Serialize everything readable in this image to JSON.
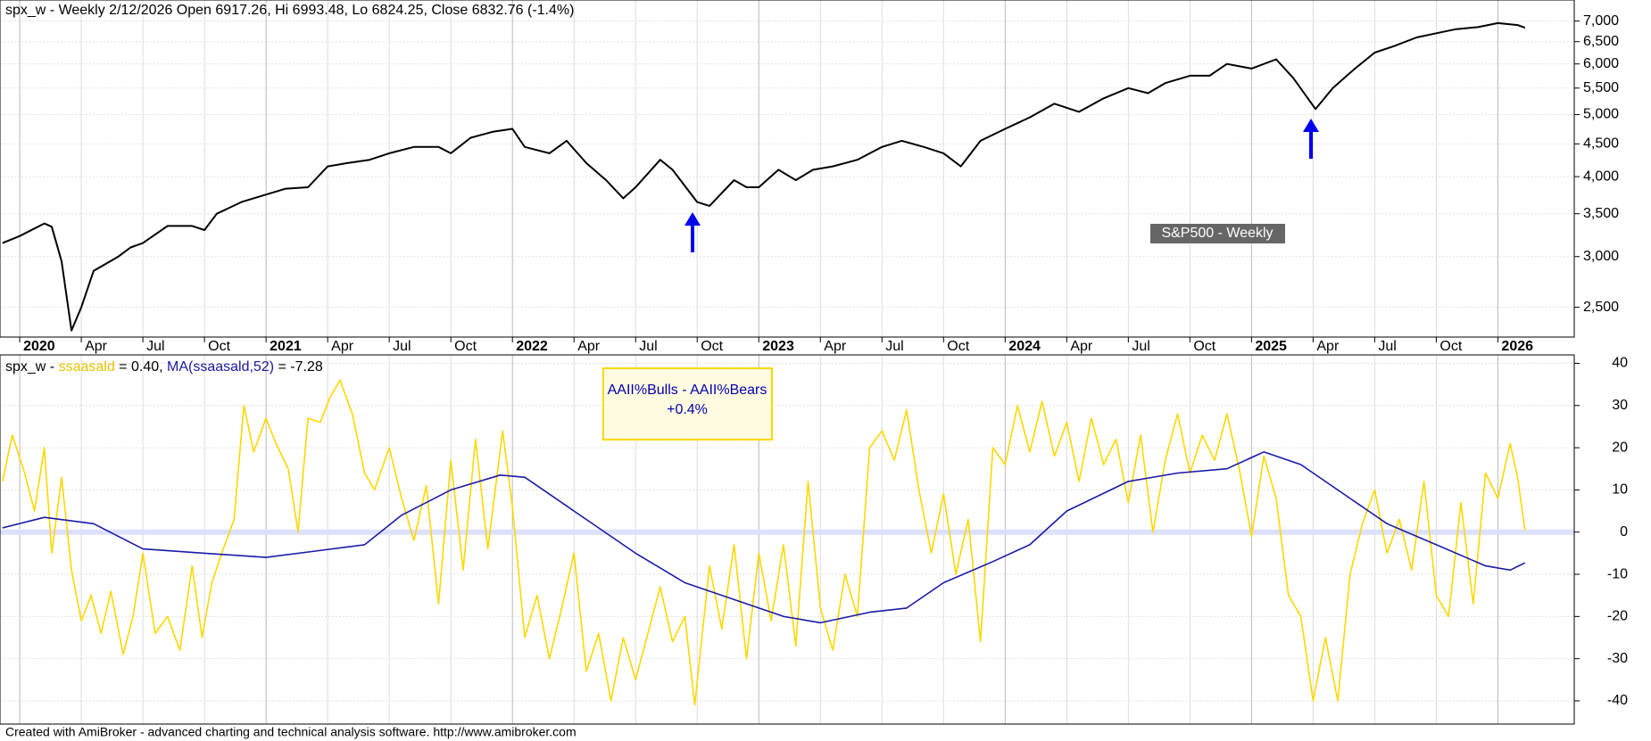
{
  "chart_data": [
    {
      "type": "line",
      "title": "spx_w - Weekly 2/12/2026 Open 6917.26, Hi 6993.48, Lo 6824.25, Close 6832.76 (-1.4%)",
      "ylog": true,
      "color": "#000000",
      "grid": true,
      "annotations": [
        "S&P500 - Weekly"
      ],
      "xlim": [
        2019.92,
        2026.31
      ],
      "xticks": [
        {
          "value": 2020,
          "label": "2020"
        },
        {
          "value": 2020.25,
          "label": "Apr"
        },
        {
          "value": 2020.5,
          "label": "Jul"
        },
        {
          "value": 2020.75,
          "label": "Oct"
        },
        {
          "value": 2021,
          "label": "2021"
        },
        {
          "value": 2021.25,
          "label": "Apr"
        },
        {
          "value": 2021.5,
          "label": "Jul"
        },
        {
          "value": 2021.75,
          "label": "Oct"
        },
        {
          "value": 2022,
          "label": "2022"
        },
        {
          "value": 2022.25,
          "label": "Apr"
        },
        {
          "value": 2022.5,
          "label": "Jul"
        },
        {
          "value": 2022.75,
          "label": "Oct"
        },
        {
          "value": 2023,
          "label": "2023"
        },
        {
          "value": 2023.25,
          "label": "Apr"
        },
        {
          "value": 2023.5,
          "label": "Jul"
        },
        {
          "value": 2023.75,
          "label": "Oct"
        },
        {
          "value": 2024,
          "label": "2024"
        },
        {
          "value": 2024.25,
          "label": "Apr"
        },
        {
          "value": 2024.5,
          "label": "Jul"
        },
        {
          "value": 2024.75,
          "label": "Oct"
        },
        {
          "value": 2025,
          "label": "2025"
        },
        {
          "value": 2025.25,
          "label": "Apr"
        },
        {
          "value": 2025.5,
          "label": "Jul"
        },
        {
          "value": 2025.75,
          "label": "Oct"
        },
        {
          "value": 2026,
          "label": "2026"
        }
      ],
      "ylim": [
        2246,
        7551
      ],
      "yticks": [
        {
          "value": 2500,
          "label": "2,500"
        },
        {
          "value": 3000,
          "label": "3,000"
        },
        {
          "value": 3500,
          "label": "3,500"
        },
        {
          "value": 4000,
          "label": "4,000"
        },
        {
          "value": 4500,
          "label": "4,500"
        },
        {
          "value": 5000,
          "label": "5,000"
        },
        {
          "value": 5500,
          "label": "5,500"
        },
        {
          "value": 6000,
          "label": "6,000"
        },
        {
          "value": 6500,
          "label": "6,500"
        },
        {
          "value": 7000,
          "label": "7,000"
        }
      ],
      "x": [
        2019.93,
        2020.0,
        2020.1,
        2020.13,
        2020.17,
        2020.21,
        2020.25,
        2020.3,
        2020.4,
        2020.45,
        2020.5,
        2020.6,
        2020.7,
        2020.75,
        2020.8,
        2020.9,
        2021.0,
        2021.08,
        2021.17,
        2021.25,
        2021.33,
        2021.42,
        2021.5,
        2021.6,
        2021.7,
        2021.75,
        2021.83,
        2021.92,
        2022.0,
        2022.05,
        2022.15,
        2022.22,
        2022.3,
        2022.38,
        2022.45,
        2022.5,
        2022.6,
        2022.65,
        2022.75,
        2022.8,
        2022.9,
        2022.95,
        2023.0,
        2023.08,
        2023.15,
        2023.22,
        2023.3,
        2023.4,
        2023.5,
        2023.58,
        2023.67,
        2023.75,
        2023.82,
        2023.9,
        2024.0,
        2024.1,
        2024.2,
        2024.3,
        2024.4,
        2024.5,
        2024.58,
        2024.65,
        2024.75,
        2024.83,
        2024.9,
        2025.0,
        2025.1,
        2025.17,
        2025.26,
        2025.33,
        2025.42,
        2025.5,
        2025.58,
        2025.67,
        2025.75,
        2025.83,
        2025.92,
        2026.0,
        2026.08,
        2026.11
      ],
      "values": [
        3150,
        3230,
        3380,
        3340,
        2950,
        2300,
        2500,
        2850,
        3000,
        3100,
        3150,
        3350,
        3350,
        3300,
        3500,
        3650,
        3750,
        3830,
        3850,
        4150,
        4200,
        4250,
        4350,
        4450,
        4450,
        4350,
        4600,
        4700,
        4750,
        4450,
        4350,
        4550,
        4200,
        3950,
        3700,
        3850,
        4250,
        4100,
        3650,
        3600,
        3950,
        3850,
        3850,
        4100,
        3950,
        4100,
        4150,
        4250,
        4450,
        4550,
        4450,
        4350,
        4150,
        4550,
        4750,
        4950,
        5200,
        5050,
        5300,
        5500,
        5400,
        5600,
        5750,
        5750,
        6000,
        5900,
        6100,
        5700,
        5100,
        5500,
        5900,
        6250,
        6400,
        6600,
        6700,
        6800,
        6850,
        6950,
        6900,
        6833
      ]
    },
    {
      "type": "line",
      "title_parts": [
        "spx_w - ",
        " = 0.40, ",
        " = -7.28"
      ],
      "grid": true,
      "annotations": [
        "AAII%Bulls - AAII%Bears",
        "+0.4%"
      ],
      "xlim": [
        2019.92,
        2026.31
      ],
      "ylim": [
        -45.5,
        42
      ],
      "yticks": [
        -40,
        -30,
        -20,
        -10,
        0,
        10,
        20,
        30,
        40
      ],
      "series": [
        {
          "name": "ssaasald",
          "color": "#ffd700",
          "x": [
            2019.93,
            2019.97,
            2020.02,
            2020.06,
            2020.1,
            2020.13,
            2020.17,
            2020.21,
            2020.25,
            2020.29,
            2020.33,
            2020.37,
            2020.42,
            2020.46,
            2020.5,
            2020.55,
            2020.6,
            2020.65,
            2020.7,
            2020.74,
            2020.78,
            2020.82,
            2020.87,
            2020.91,
            2020.95,
            2021.0,
            2021.04,
            2021.09,
            2021.13,
            2021.17,
            2021.22,
            2021.26,
            2021.3,
            2021.35,
            2021.4,
            2021.44,
            2021.5,
            2021.55,
            2021.6,
            2021.65,
            2021.7,
            2021.75,
            2021.8,
            2021.85,
            2021.9,
            2021.96,
            2022.0,
            2022.05,
            2022.1,
            2022.15,
            2022.2,
            2022.25,
            2022.3,
            2022.35,
            2022.4,
            2022.45,
            2022.5,
            2022.55,
            2022.6,
            2022.65,
            2022.7,
            2022.74,
            2022.8,
            2022.85,
            2022.9,
            2022.95,
            2023.0,
            2023.05,
            2023.1,
            2023.15,
            2023.2,
            2023.25,
            2023.3,
            2023.35,
            2023.4,
            2023.45,
            2023.5,
            2023.55,
            2023.6,
            2023.65,
            2023.7,
            2023.75,
            2023.8,
            2023.85,
            2023.9,
            2023.95,
            2024.0,
            2024.05,
            2024.1,
            2024.15,
            2024.2,
            2024.25,
            2024.3,
            2024.35,
            2024.4,
            2024.45,
            2024.5,
            2024.55,
            2024.6,
            2024.65,
            2024.7,
            2024.75,
            2024.8,
            2024.85,
            2024.9,
            2024.95,
            2025.0,
            2025.05,
            2025.1,
            2025.15,
            2025.2,
            2025.25,
            2025.3,
            2025.35,
            2025.4,
            2025.45,
            2025.5,
            2025.55,
            2025.6,
            2025.65,
            2025.7,
            2025.75,
            2025.8,
            2025.85,
            2025.9,
            2025.95,
            2026.0,
            2026.05,
            2026.08,
            2026.11
          ],
          "values": [
            12,
            23,
            14,
            5,
            20,
            -5,
            13,
            -9,
            -21,
            -15,
            -24,
            -14,
            -29,
            -20,
            -5,
            -24,
            -20,
            -28,
            -8,
            -25,
            -12,
            -5,
            3,
            30,
            19,
            27,
            21,
            15,
            0,
            27,
            26,
            32,
            36,
            28,
            14,
            10,
            20,
            8,
            -2,
            11,
            -17,
            17,
            -9,
            22,
            -4,
            24,
            6,
            -25,
            -15,
            -30,
            -18,
            -5,
            -33,
            -24,
            -40,
            -25,
            -35,
            -24,
            -13,
            -26,
            -20,
            -41,
            -8,
            -23,
            -3,
            -30,
            -5,
            -21,
            -3,
            -27,
            12,
            -18,
            -28,
            -10,
            -20,
            20,
            24,
            17,
            29,
            10,
            -5,
            9,
            -10,
            3,
            -26,
            20,
            16,
            30,
            19,
            31,
            18,
            26,
            12,
            27,
            16,
            22,
            7,
            23,
            0,
            17,
            28,
            14,
            23,
            17,
            28,
            15,
            -1,
            18,
            8,
            -15,
            -20,
            -40,
            -25,
            -40,
            -10,
            2,
            10,
            -5,
            3,
            -9,
            12,
            -15,
            -20,
            7,
            -17,
            14,
            8,
            21,
            13,
            0.4
          ]
        },
        {
          "name": "MA(ssaasald,52)",
          "color": "#1a1aa6",
          "x": [
            2019.93,
            2020.1,
            2020.3,
            2020.5,
            2020.75,
            2021.0,
            2021.2,
            2021.4,
            2021.55,
            2021.75,
            2021.95,
            2022.05,
            2022.25,
            2022.5,
            2022.7,
            2022.9,
            2023.1,
            2023.25,
            2023.45,
            2023.6,
            2023.75,
            2023.95,
            2024.1,
            2024.25,
            2024.5,
            2024.7,
            2024.9,
            2025.05,
            2025.2,
            2025.4,
            2025.55,
            2025.75,
            2025.95,
            2026.05,
            2026.11
          ],
          "values": [
            1,
            3.5,
            2,
            -4,
            -5,
            -6,
            -4.5,
            -3,
            4,
            10,
            13.5,
            13,
            5,
            -5,
            -12,
            -16,
            -20,
            -21.5,
            -19,
            -18,
            -12,
            -7,
            -3,
            5,
            12,
            14,
            15,
            19,
            16,
            8,
            2,
            -3,
            -8,
            -9,
            -7.28
          ]
        }
      ]
    }
  ],
  "footer": "Created with AmiBroker - advanced charting and technical analysis software. http://www.amibroker.com"
}
